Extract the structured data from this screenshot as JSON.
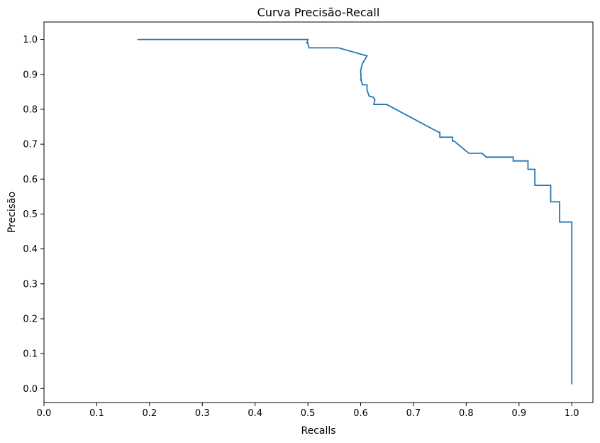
{
  "chart_data": {
    "type": "line",
    "title": "Curva Precisão-Recall",
    "xlabel": "Recalls",
    "ylabel": "Precisão",
    "xlim": [
      0.0,
      1.04
    ],
    "ylim": [
      -0.04,
      1.05
    ],
    "xticks": [
      "0.0",
      "0.1",
      "0.2",
      "0.3",
      "0.4",
      "0.5",
      "0.6",
      "0.7",
      "0.8",
      "0.9",
      "1.0"
    ],
    "yticks": [
      "0.0",
      "0.1",
      "0.2",
      "0.3",
      "0.4",
      "0.5",
      "0.6",
      "0.7",
      "0.8",
      "0.9",
      "1.0"
    ],
    "grid": false,
    "legend": "none",
    "series": [
      {
        "color": "#1f77b4",
        "x": [
          0.177,
          0.5,
          0.498,
          0.5,
          0.502,
          0.558,
          0.612,
          0.603,
          0.6,
          0.601,
          0.6,
          0.603,
          0.603,
          0.612,
          0.612,
          0.616,
          0.623,
          0.627,
          0.625,
          0.649,
          0.748,
          0.75,
          0.75,
          0.774,
          0.774,
          0.777,
          0.805,
          0.83,
          0.838,
          0.889,
          0.889,
          0.917,
          0.917,
          0.93,
          0.93,
          0.96,
          0.96,
          0.977,
          0.977,
          1.0,
          1.0
        ],
        "y": [
          1.0,
          1.0,
          0.99,
          0.99,
          0.976,
          0.976,
          0.953,
          0.93,
          0.91,
          0.885,
          0.885,
          0.875,
          0.87,
          0.87,
          0.855,
          0.838,
          0.835,
          0.828,
          0.814,
          0.814,
          0.734,
          0.734,
          0.72,
          0.72,
          0.709,
          0.709,
          0.674,
          0.674,
          0.663,
          0.663,
          0.652,
          0.652,
          0.628,
          0.628,
          0.582,
          0.582,
          0.535,
          0.535,
          0.477,
          0.477,
          0.012
        ]
      }
    ]
  }
}
